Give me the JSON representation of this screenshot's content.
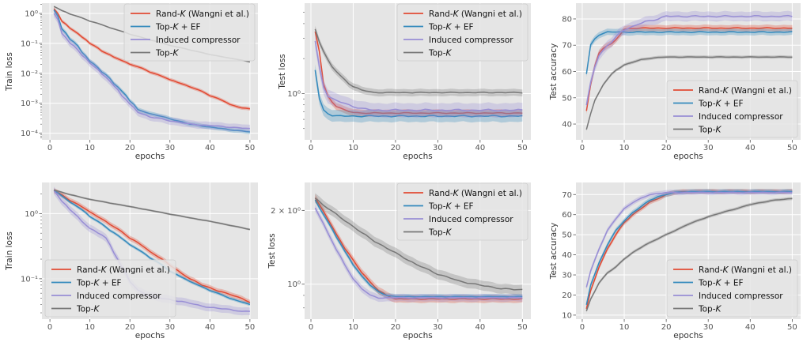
{
  "colors": {
    "Rand-K (Wangni et al.)": "#e24a33",
    "Top-K + EF": "#348abd",
    "Induced compressor": "#988ed5",
    "Top-K": "#777777",
    "panel_bg": "#e5e5e5",
    "grid": "#ffffff"
  },
  "chart_data": [
    {
      "type": "line",
      "xlabel": "epochs",
      "ylabel": "Train loss",
      "yscale": "log",
      "xlim": [
        -2,
        52
      ],
      "ylim": [
        6e-05,
        2.2
      ],
      "xticks": [
        0,
        10,
        20,
        30,
        40,
        50
      ],
      "yticks": [
        {
          "value": 1,
          "label": "10⁰"
        },
        {
          "value": 0.1,
          "label": "10⁻¹"
        },
        {
          "value": 0.01,
          "label": "10⁻²"
        },
        {
          "value": 0.001,
          "label": "10⁻³"
        },
        {
          "value": 0.0001,
          "label": "10⁻⁴"
        }
      ],
      "legend_position": "top-right",
      "grid": true,
      "series": [
        {
          "name": "Rand-K (Wangni et al.)",
          "x": [
            1,
            3,
            5,
            8,
            10,
            13,
            16,
            20,
            25,
            30,
            35,
            40,
            45,
            48,
            50
          ],
          "y": [
            1.4,
            0.55,
            0.32,
            0.16,
            0.1,
            0.055,
            0.034,
            0.02,
            0.011,
            0.006,
            0.0035,
            0.0018,
            0.0009,
            0.0007,
            0.00065
          ],
          "band": 0.12
        },
        {
          "name": "Top-K + EF",
          "x": [
            1,
            3,
            5,
            8,
            10,
            13,
            16,
            18,
            20,
            22,
            25,
            30,
            35,
            40,
            45,
            50
          ],
          "y": [
            1.3,
            0.3,
            0.14,
            0.05,
            0.025,
            0.011,
            0.0045,
            0.0025,
            0.0012,
            0.0006,
            0.00045,
            0.0003,
            0.0002,
            0.00016,
            0.00013,
            0.00011
          ],
          "band": 0.15
        },
        {
          "name": "Induced compressor",
          "x": [
            1,
            3,
            5,
            8,
            10,
            13,
            16,
            18,
            20,
            22,
            25,
            30,
            35,
            40,
            45,
            50
          ],
          "y": [
            1.0,
            0.22,
            0.1,
            0.04,
            0.022,
            0.009,
            0.0038,
            0.0018,
            0.0009,
            0.0005,
            0.00035,
            0.00026,
            0.0002,
            0.00018,
            0.00016,
            0.00014
          ],
          "band": 0.25
        },
        {
          "name": "Top-K",
          "x": [
            1,
            3,
            5,
            10,
            15,
            20,
            25,
            30,
            35,
            40,
            45,
            50
          ],
          "y": [
            1.7,
            1.25,
            0.95,
            0.55,
            0.33,
            0.2,
            0.13,
            0.085,
            0.06,
            0.042,
            0.032,
            0.024
          ],
          "band": 0.05
        }
      ]
    },
    {
      "type": "line",
      "xlabel": "epochs",
      "ylabel": "Test loss",
      "yscale": "log",
      "xlim": [
        -1.5,
        52
      ],
      "ylim": [
        0.4,
        6
      ],
      "xticks": [
        0,
        10,
        20,
        30,
        40,
        50
      ],
      "yticks": [
        {
          "value": 1,
          "label": "10⁰"
        }
      ],
      "legend_position": "top-right",
      "grid": true,
      "series": [
        {
          "name": "Rand-K (Wangni et al.)",
          "x": [
            1,
            2,
            3,
            4,
            5,
            6,
            7,
            8,
            9,
            10,
            12,
            15,
            20,
            30,
            40,
            50
          ],
          "y": [
            3.4,
            2.3,
            1.2,
            0.95,
            0.85,
            0.78,
            0.75,
            0.72,
            0.7,
            0.69,
            0.68,
            0.68,
            0.68,
            0.68,
            0.68,
            0.68
          ],
          "band": 0.06
        },
        {
          "name": "Top-K + EF",
          "x": [
            1,
            2,
            3,
            4,
            5,
            6,
            8,
            10,
            20,
            30,
            40,
            50
          ],
          "y": [
            1.6,
            0.9,
            0.72,
            0.68,
            0.65,
            0.64,
            0.64,
            0.64,
            0.64,
            0.64,
            0.64,
            0.64
          ],
          "band": 0.1
        },
        {
          "name": "Induced compressor",
          "x": [
            1,
            2,
            3,
            4,
            5,
            6,
            8,
            10,
            12,
            15,
            20,
            30,
            40,
            50
          ],
          "y": [
            2.8,
            1.7,
            1.15,
            0.95,
            0.9,
            0.87,
            0.82,
            0.78,
            0.74,
            0.72,
            0.72,
            0.72,
            0.72,
            0.72
          ],
          "band": 0.12
        },
        {
          "name": "Top-K",
          "x": [
            1,
            2,
            3,
            4,
            5,
            6,
            7,
            8,
            9,
            10,
            12,
            15,
            20,
            30,
            40,
            50
          ],
          "y": [
            3.6,
            2.8,
            2.3,
            1.95,
            1.7,
            1.55,
            1.42,
            1.32,
            1.22,
            1.15,
            1.07,
            1.02,
            1.02,
            1.02,
            1.02,
            1.02
          ],
          "band": 0.06
        }
      ]
    },
    {
      "type": "line",
      "xlabel": "epochs",
      "ylabel": "Test accuracy",
      "xlim": [
        -1.5,
        52
      ],
      "ylim": [
        34,
        86
      ],
      "xticks": [
        0,
        10,
        20,
        30,
        40,
        50
      ],
      "yticks": [
        40,
        50,
        60,
        70,
        80
      ],
      "legend_position": "bottom-right",
      "grid": true,
      "series": [
        {
          "name": "Rand-K (Wangni et al.)",
          "x": [
            1,
            2,
            3,
            4,
            5,
            6,
            7,
            8,
            9,
            10,
            12,
            15,
            20,
            30,
            40,
            50
          ],
          "y": [
            45,
            55,
            62,
            67,
            69,
            70,
            70.5,
            72,
            74,
            76,
            76.5,
            76.5,
            76.5,
            76.5,
            76.5,
            76.5
          ],
          "band": 1.2
        },
        {
          "name": "Top-K + EF",
          "x": [
            1,
            2,
            3,
            4,
            5,
            6,
            8,
            10,
            12,
            15,
            20,
            30,
            40,
            50
          ],
          "y": [
            59,
            70,
            72.5,
            74,
            74.5,
            75,
            75,
            75,
            75,
            75,
            75,
            75,
            75,
            75
          ],
          "band": 1.2
        },
        {
          "name": "Induced compressor",
          "x": [
            1,
            2,
            3,
            4,
            5,
            6,
            7,
            8,
            9,
            10,
            12,
            15,
            18,
            20,
            30,
            40,
            50
          ],
          "y": [
            47,
            56,
            62,
            66,
            68,
            70,
            71,
            73,
            75,
            76,
            77,
            79,
            80,
            81,
            81,
            81,
            81
          ],
          "band": 1.8
        },
        {
          "name": "Top-K",
          "x": [
            1,
            2,
            3,
            4,
            5,
            6,
            7,
            8,
            9,
            10,
            12,
            14,
            16,
            18,
            20,
            30,
            40,
            50
          ],
          "y": [
            38,
            44,
            49,
            52,
            55,
            57,
            59,
            60.5,
            61.5,
            62.5,
            63.5,
            64.5,
            65,
            65.3,
            65.5,
            65.5,
            65.5,
            65.5
          ],
          "band": 0.6
        }
      ]
    },
    {
      "type": "line",
      "xlabel": "epochs",
      "ylabel": "Train loss",
      "yscale": "log",
      "xlim": [
        -2,
        52
      ],
      "ylim": [
        0.024,
        3.0
      ],
      "xticks": [
        0,
        10,
        20,
        30,
        40,
        50
      ],
      "yticks": [
        {
          "value": 1,
          "label": "10⁰"
        },
        {
          "value": 0.1,
          "label": "10⁻¹"
        }
      ],
      "legend_position": "bottom-left",
      "grid": true,
      "series": [
        {
          "name": "Rand-K (Wangni et al.)",
          "x": [
            1,
            5,
            10,
            15,
            20,
            25,
            30,
            33,
            35,
            38,
            40,
            42,
            44,
            46,
            48,
            50
          ],
          "y": [
            2.25,
            1.6,
            1.05,
            0.68,
            0.42,
            0.26,
            0.16,
            0.12,
            0.1,
            0.08,
            0.073,
            0.065,
            0.06,
            0.055,
            0.05,
            0.043
          ],
          "band": 0.08
        },
        {
          "name": "Top-K + EF",
          "x": [
            1,
            5,
            10,
            15,
            20,
            25,
            30,
            35,
            40,
            45,
            50
          ],
          "y": [
            2.25,
            1.5,
            0.9,
            0.55,
            0.33,
            0.21,
            0.13,
            0.09,
            0.066,
            0.05,
            0.04
          ],
          "band": 0.05
        },
        {
          "name": "Induced compressor",
          "x": [
            1,
            3,
            5,
            8,
            10,
            12,
            13,
            14,
            15,
            16,
            18,
            20,
            22,
            25,
            28,
            30,
            35,
            40,
            45,
            48,
            50
          ],
          "y": [
            2.25,
            1.55,
            1.15,
            0.75,
            0.6,
            0.5,
            0.47,
            0.42,
            0.33,
            0.25,
            0.15,
            0.09,
            0.066,
            0.055,
            0.05,
            0.048,
            0.042,
            0.036,
            0.034,
            0.031,
            0.032
          ],
          "band": 0.12
        },
        {
          "name": "Top-K",
          "x": [
            1,
            5,
            10,
            15,
            20,
            25,
            30,
            35,
            40,
            45,
            50
          ],
          "y": [
            2.3,
            1.95,
            1.65,
            1.45,
            1.28,
            1.12,
            0.98,
            0.86,
            0.76,
            0.66,
            0.57
          ],
          "band": 0.03
        }
      ]
    },
    {
      "type": "line",
      "xlabel": "epochs",
      "ylabel": "Test loss",
      "yscale": "log",
      "xlim": [
        -1.5,
        52
      ],
      "ylim": [
        0.72,
        2.6
      ],
      "xticks": [
        0,
        10,
        20,
        30,
        40,
        50
      ],
      "yticks": [
        {
          "value": 2,
          "label": "2 × 10⁰"
        },
        {
          "value": 1,
          "label": "10⁰"
        }
      ],
      "legend_position": "top-right",
      "grid": true,
      "series": [
        {
          "name": "Rand-K (Wangni et al.)",
          "x": [
            1,
            2,
            4,
            6,
            8,
            10,
            12,
            14,
            16,
            18,
            20,
            25,
            30,
            40,
            50
          ],
          "y": [
            2.25,
            2.1,
            1.85,
            1.6,
            1.4,
            1.25,
            1.12,
            1.02,
            0.94,
            0.9,
            0.87,
            0.87,
            0.87,
            0.87,
            0.87
          ],
          "band": 0.03
        },
        {
          "name": "Top-K + EF",
          "x": [
            1,
            2,
            4,
            6,
            8,
            10,
            12,
            14,
            16,
            18,
            20,
            25,
            30,
            40,
            50
          ],
          "y": [
            2.2,
            2.05,
            1.8,
            1.56,
            1.36,
            1.2,
            1.08,
            0.99,
            0.93,
            0.9,
            0.89,
            0.89,
            0.89,
            0.89,
            0.89
          ],
          "band": 0.02
        },
        {
          "name": "Induced compressor",
          "x": [
            1,
            2,
            4,
            6,
            8,
            10,
            12,
            14,
            16,
            18,
            20,
            25,
            30,
            40,
            50
          ],
          "y": [
            2.05,
            1.9,
            1.62,
            1.38,
            1.2,
            1.05,
            0.96,
            0.9,
            0.88,
            0.88,
            0.88,
            0.88,
            0.88,
            0.88,
            0.88
          ],
          "band": 0.03
        },
        {
          "name": "Top-K",
          "x": [
            1,
            3,
            5,
            8,
            10,
            12,
            15,
            18,
            20,
            25,
            30,
            35,
            40,
            45,
            48,
            50
          ],
          "y": [
            2.25,
            2.1,
            1.98,
            1.82,
            1.72,
            1.62,
            1.5,
            1.4,
            1.34,
            1.2,
            1.1,
            1.03,
            0.99,
            0.96,
            0.95,
            0.95
          ],
          "band": 0.04
        }
      ]
    },
    {
      "type": "line",
      "xlabel": "epochs",
      "ylabel": "Test accuracy",
      "xlim": [
        -1.5,
        52
      ],
      "ylim": [
        8,
        76
      ],
      "xticks": [
        0,
        10,
        20,
        30,
        40,
        50
      ],
      "yticks": [
        10,
        20,
        30,
        40,
        50,
        60,
        70
      ],
      "legend_position": "bottom-right",
      "grid": true,
      "series": [
        {
          "name": "Rand-K (Wangni et al.)",
          "x": [
            1,
            2,
            4,
            6,
            8,
            10,
            12,
            14,
            16,
            18,
            20,
            22,
            25,
            30,
            40,
            50
          ],
          "y": [
            13,
            22,
            34,
            43,
            50,
            56,
            60,
            63,
            66,
            68,
            70,
            71,
            71.5,
            71.5,
            71.5,
            71.5
          ],
          "band": 1.2
        },
        {
          "name": "Top-K + EF",
          "x": [
            1,
            2,
            4,
            6,
            8,
            10,
            12,
            14,
            16,
            18,
            20,
            22,
            25,
            30,
            40,
            50
          ],
          "y": [
            15,
            25,
            36,
            45,
            52,
            57,
            61,
            64,
            67,
            69,
            70,
            71,
            71.5,
            71.5,
            71.5,
            71.5
          ],
          "band": 1.2
        },
        {
          "name": "Induced compressor",
          "x": [
            1,
            2,
            4,
            6,
            8,
            10,
            12,
            14,
            16,
            18,
            20,
            22,
            25,
            30,
            40,
            50
          ],
          "y": [
            24,
            32,
            43,
            52,
            58,
            63,
            66,
            68,
            70,
            70.5,
            71,
            71,
            71,
            71,
            71,
            71
          ],
          "band": 1.2
        },
        {
          "name": "Top-K",
          "x": [
            1,
            2,
            4,
            6,
            8,
            10,
            12,
            15,
            18,
            20,
            25,
            30,
            35,
            40,
            45,
            50
          ],
          "y": [
            12,
            18,
            26,
            31,
            34,
            38,
            41,
            45,
            48,
            50,
            55,
            59,
            62,
            65,
            67,
            68
          ],
          "band": 0.8
        }
      ]
    }
  ]
}
